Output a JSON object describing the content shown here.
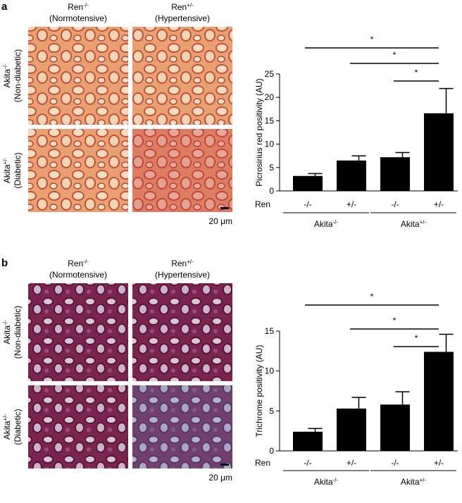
{
  "panels": [
    {
      "label": "a",
      "columns": [
        {
          "base": "Ren",
          "sup": "-/-",
          "note": "(Normotensive)"
        },
        {
          "base": "Ren",
          "sup": "+/-",
          "note": "(Hypertensive)"
        }
      ],
      "rows": [
        {
          "base": "Akita",
          "sup": "-/-",
          "note": "(Non-diabetic)"
        },
        {
          "base": "Akita",
          "sup": "+/-",
          "note": "(Diabetic)"
        }
      ],
      "scale_bar": "20 μm"
    },
    {
      "label": "b",
      "columns": [
        {
          "base": "Ren",
          "sup": "-/-",
          "note": "(Normotensive)"
        },
        {
          "base": "Ren",
          "sup": "+/-",
          "note": "(Hypertensive)"
        }
      ],
      "rows": [
        {
          "base": "Akita",
          "sup": "-/-",
          "note": "(Non-diabetic)"
        },
        {
          "base": "Akita",
          "sup": "+/-",
          "note": "(Diabetic)"
        }
      ],
      "scale_bar": "20 μm"
    }
  ],
  "chart_data": [
    {
      "type": "bar",
      "ylabel": "Picrosirius red positivity (AU)",
      "categories": [
        "-/-",
        "+/-",
        "-/-",
        "+/-"
      ],
      "series": [
        {
          "color": "#000000",
          "values": [
            3.2,
            6.5,
            7.2,
            16.6
          ],
          "errors": [
            0.5,
            1.0,
            1.0,
            5.3
          ]
        }
      ],
      "ylim": [
        0,
        25
      ],
      "yticks": [
        0,
        5,
        10,
        15,
        20,
        25
      ],
      "row_label": "Ren",
      "groups": [
        {
          "base": "Akita",
          "sup": "-/-"
        },
        {
          "base": "Akita",
          "sup": "+/-"
        }
      ],
      "annotations": [
        "*",
        "*",
        "*"
      ]
    },
    {
      "type": "bar",
      "ylabel": "Trichrome positivity (AU)",
      "categories": [
        "-/-",
        "+/-",
        "-/-",
        "+/-"
      ],
      "series": [
        {
          "color": "#000000",
          "values": [
            2.4,
            5.3,
            5.8,
            12.4
          ],
          "errors": [
            0.4,
            1.4,
            1.6,
            2.2
          ]
        }
      ],
      "ylim": [
        0,
        15
      ],
      "yticks": [
        0,
        5,
        10,
        15
      ],
      "row_label": "Ren",
      "groups": [
        {
          "base": "Akita",
          "sup": "-/-"
        },
        {
          "base": "Akita",
          "sup": "+/-"
        }
      ],
      "annotations": [
        "*",
        "*",
        "*"
      ]
    }
  ]
}
